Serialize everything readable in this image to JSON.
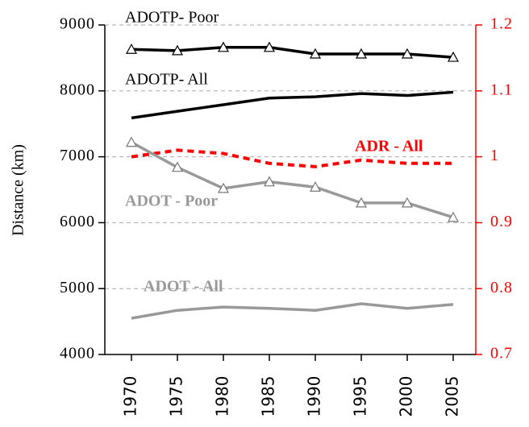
{
  "chart_data": {
    "type": "line",
    "y_label": "Distance (km)",
    "categories": [
      "1970",
      "1975",
      "1980",
      "1985",
      "1990",
      "1995",
      "2000",
      "2005"
    ],
    "ylim": [
      4000,
      9000
    ],
    "yticks": [
      4000,
      5000,
      6000,
      7000,
      8000,
      9000
    ],
    "y2lim": [
      0.7,
      1.2
    ],
    "y2ticks": [
      0.7,
      0.8,
      0.9,
      1,
      1.1,
      1.2
    ],
    "y2_color": "#ff0000",
    "grid": true,
    "series": [
      {
        "name": "ADOTP- Poor",
        "color": "#000000",
        "marker": "triangle",
        "values": [
          8630,
          8610,
          8660,
          8660,
          8560,
          8560,
          8560,
          8510
        ]
      },
      {
        "name": "ADOTP- All",
        "color": "#000000",
        "values": [
          7590,
          7690,
          7790,
          7890,
          7910,
          7960,
          7930,
          7980
        ]
      },
      {
        "name": "ADR - All",
        "color": "#ff0000",
        "axis": "y2",
        "dashed": true,
        "values": [
          1.0,
          1.01,
          1.005,
          0.99,
          0.985,
          0.995,
          0.99,
          0.99
        ]
      },
      {
        "name": "ADOT - Poor",
        "color": "#999999",
        "marker": "triangle",
        "values": [
          7220,
          6840,
          6520,
          6620,
          6540,
          6300,
          6300,
          6080
        ]
      },
      {
        "name": "ADOT - All",
        "color": "#999999",
        "values": [
          4550,
          4670,
          4720,
          4700,
          4670,
          4770,
          4700,
          4760
        ]
      }
    ]
  }
}
